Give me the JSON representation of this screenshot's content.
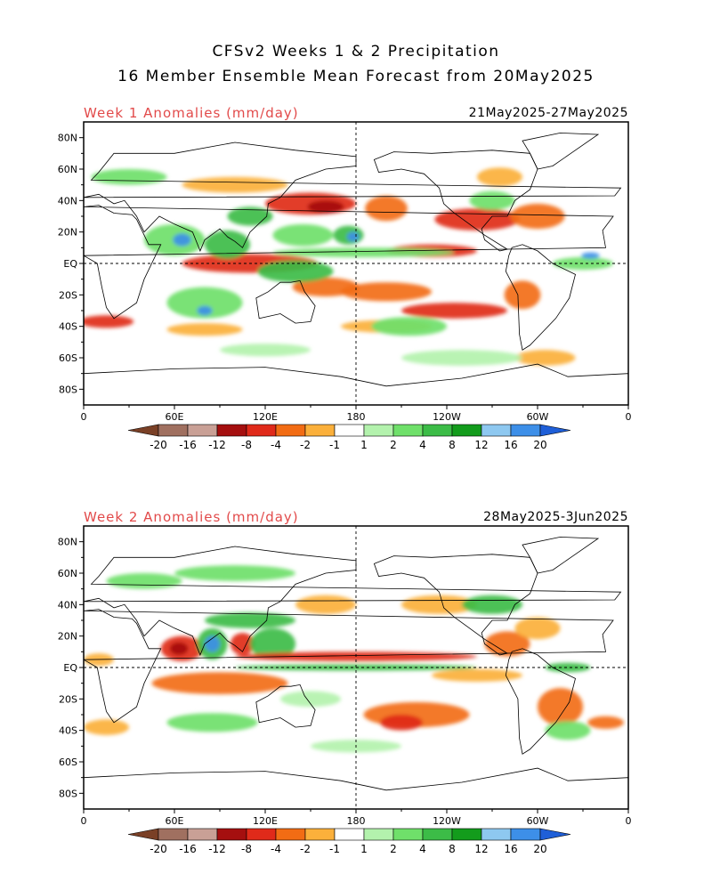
{
  "header": {
    "title_line1": "CFSv2 Weeks 1 & 2 Precipitation",
    "title_line2": "16 Member Ensemble Mean Forecast from 20May2025"
  },
  "axes": {
    "lat_ticks": [
      "80N",
      "60N",
      "40N",
      "20N",
      "EQ",
      "20S",
      "40S",
      "60S",
      "80S"
    ],
    "lon_ticks": [
      "0",
      "60E",
      "120E",
      "180",
      "120W",
      "60W",
      "0"
    ]
  },
  "colorbar": {
    "labels": [
      "-20",
      "-16",
      "-12",
      "-8",
      "-4",
      "-2",
      "-1",
      "1",
      "2",
      "4",
      "8",
      "12",
      "16",
      "20"
    ],
    "colors": [
      "#7a4026",
      "#a07060",
      "#c9a096",
      "#a50f0f",
      "#e02a1a",
      "#f26c14",
      "#fbb03b",
      "#ffffff",
      "#b3f2ad",
      "#6fe06a",
      "#3cbc47",
      "#139c1c",
      "#8ec8f0",
      "#3d8fe8",
      "#1f5fd8"
    ]
  },
  "colors": {
    "label_red": "#e24a4a",
    "land": "#ffffff",
    "coast": "#000000"
  },
  "panels": [
    {
      "label": "Week 1 Anomalies (mm/day)",
      "date_range": "21May2025-27May2025",
      "blobs": [
        {
          "lon": 150,
          "lat": 38,
          "rx": 30,
          "ry": 7,
          "c": "#e02a1a"
        },
        {
          "lon": 160,
          "lat": 36,
          "rx": 12,
          "ry": 4,
          "c": "#a50f0f"
        },
        {
          "lon": 200,
          "lat": 35,
          "rx": 14,
          "ry": 8,
          "c": "#f26c14"
        },
        {
          "lon": 260,
          "lat": 28,
          "rx": 28,
          "ry": 7,
          "c": "#e02a1a"
        },
        {
          "lon": 300,
          "lat": 30,
          "rx": 18,
          "ry": 8,
          "c": "#f26c14"
        },
        {
          "lon": 110,
          "lat": 0,
          "rx": 45,
          "ry": 6,
          "c": "#e02a1a"
        },
        {
          "lon": 230,
          "lat": 8,
          "rx": 30,
          "ry": 4,
          "c": "#e02a1a"
        },
        {
          "lon": 200,
          "lat": -18,
          "rx": 30,
          "ry": 6,
          "c": "#f26c14"
        },
        {
          "lon": 245,
          "lat": -30,
          "rx": 35,
          "ry": 5,
          "c": "#e02a1a"
        },
        {
          "lon": 290,
          "lat": -20,
          "rx": 12,
          "ry": 9,
          "c": "#f26c14"
        },
        {
          "lon": 15,
          "lat": -37,
          "rx": 18,
          "ry": 4,
          "c": "#e02a1a"
        },
        {
          "lon": 160,
          "lat": -15,
          "rx": 22,
          "ry": 6,
          "c": "#f26c14"
        },
        {
          "lon": 100,
          "lat": 50,
          "rx": 35,
          "ry": 5,
          "c": "#fbb03b"
        },
        {
          "lon": 275,
          "lat": 55,
          "rx": 15,
          "ry": 6,
          "c": "#fbb03b"
        },
        {
          "lon": 305,
          "lat": -60,
          "rx": 20,
          "ry": 5,
          "c": "#fbb03b"
        },
        {
          "lon": 200,
          "lat": -40,
          "rx": 30,
          "ry": 4,
          "c": "#fbb03b"
        },
        {
          "lon": 80,
          "lat": -42,
          "rx": 25,
          "ry": 4,
          "c": "#fbb03b"
        },
        {
          "lon": 60,
          "lat": 15,
          "rx": 20,
          "ry": 10,
          "c": "#6fe06a"
        },
        {
          "lon": 65,
          "lat": 15,
          "rx": 6,
          "ry": 4,
          "c": "#3d8fe8"
        },
        {
          "lon": 95,
          "lat": 12,
          "rx": 15,
          "ry": 9,
          "c": "#3cbc47"
        },
        {
          "lon": 145,
          "lat": 18,
          "rx": 20,
          "ry": 7,
          "c": "#6fe06a"
        },
        {
          "lon": 175,
          "lat": 18,
          "rx": 10,
          "ry": 6,
          "c": "#3cbc47"
        },
        {
          "lon": 178,
          "lat": 17,
          "rx": 4,
          "ry": 3,
          "c": "#3d8fe8"
        },
        {
          "lon": 185,
          "lat": 7,
          "rx": 60,
          "ry": 3,
          "c": "#6fe06a"
        },
        {
          "lon": 80,
          "lat": -25,
          "rx": 25,
          "ry": 10,
          "c": "#6fe06a"
        },
        {
          "lon": 80,
          "lat": -30,
          "rx": 5,
          "ry": 3,
          "c": "#3d8fe8"
        },
        {
          "lon": 140,
          "lat": -5,
          "rx": 25,
          "ry": 7,
          "c": "#3cbc47"
        },
        {
          "lon": 330,
          "lat": 0,
          "rx": 20,
          "ry": 4,
          "c": "#6fe06a"
        },
        {
          "lon": 335,
          "lat": 5,
          "rx": 6,
          "ry": 2,
          "c": "#3d8fe8"
        },
        {
          "lon": 215,
          "lat": -40,
          "rx": 25,
          "ry": 6,
          "c": "#6fe06a"
        },
        {
          "lon": 30,
          "lat": 55,
          "rx": 25,
          "ry": 5,
          "c": "#6fe06a"
        },
        {
          "lon": 270,
          "lat": 40,
          "rx": 15,
          "ry": 6,
          "c": "#6fe06a"
        },
        {
          "lon": 120,
          "lat": -55,
          "rx": 30,
          "ry": 4,
          "c": "#b3f2ad"
        },
        {
          "lon": 250,
          "lat": -60,
          "rx": 40,
          "ry": 5,
          "c": "#b3f2ad"
        },
        {
          "lon": 110,
          "lat": 30,
          "rx": 15,
          "ry": 6,
          "c": "#3cbc47"
        }
      ]
    },
    {
      "label": "Week 2 Anomalies (mm/day)",
      "date_range": "28May2025-3Jun2025",
      "blobs": [
        {
          "lon": 65,
          "lat": 12,
          "rx": 14,
          "ry": 8,
          "c": "#e02a1a"
        },
        {
          "lon": 63,
          "lat": 12,
          "rx": 6,
          "ry": 4,
          "c": "#a50f0f"
        },
        {
          "lon": 85,
          "lat": 15,
          "rx": 10,
          "ry": 10,
          "c": "#3cbc47"
        },
        {
          "lon": 85,
          "lat": 15,
          "rx": 5,
          "ry": 5,
          "c": "#3d8fe8"
        },
        {
          "lon": 105,
          "lat": 15,
          "rx": 8,
          "ry": 7,
          "c": "#e02a1a"
        },
        {
          "lon": 125,
          "lat": 15,
          "rx": 15,
          "ry": 10,
          "c": "#3cbc47"
        },
        {
          "lon": 110,
          "lat": 30,
          "rx": 30,
          "ry": 5,
          "c": "#3cbc47"
        },
        {
          "lon": 180,
          "lat": 7,
          "rx": 80,
          "ry": 3,
          "c": "#e02a1a"
        },
        {
          "lon": 180,
          "lat": 0,
          "rx": 80,
          "ry": 2,
          "c": "#3cbc47"
        },
        {
          "lon": 280,
          "lat": 15,
          "rx": 15,
          "ry": 8,
          "c": "#f26c14"
        },
        {
          "lon": 300,
          "lat": 25,
          "rx": 15,
          "ry": 7,
          "c": "#fbb03b"
        },
        {
          "lon": 320,
          "lat": 0,
          "rx": 15,
          "ry": 3,
          "c": "#3cbc47"
        },
        {
          "lon": 90,
          "lat": -10,
          "rx": 45,
          "ry": 7,
          "c": "#f26c14"
        },
        {
          "lon": 220,
          "lat": -30,
          "rx": 35,
          "ry": 8,
          "c": "#f26c14"
        },
        {
          "lon": 210,
          "lat": -35,
          "rx": 14,
          "ry": 5,
          "c": "#e02a1a"
        },
        {
          "lon": 315,
          "lat": -25,
          "rx": 15,
          "ry": 12,
          "c": "#f26c14"
        },
        {
          "lon": 15,
          "lat": -38,
          "rx": 15,
          "ry": 5,
          "c": "#fbb03b"
        },
        {
          "lon": 345,
          "lat": -35,
          "rx": 12,
          "ry": 4,
          "c": "#f26c14"
        },
        {
          "lon": 160,
          "lat": 40,
          "rx": 20,
          "ry": 6,
          "c": "#fbb03b"
        },
        {
          "lon": 235,
          "lat": 40,
          "rx": 25,
          "ry": 6,
          "c": "#fbb03b"
        },
        {
          "lon": 270,
          "lat": 40,
          "rx": 20,
          "ry": 6,
          "c": "#3cbc47"
        },
        {
          "lon": 100,
          "lat": 60,
          "rx": 40,
          "ry": 5,
          "c": "#6fe06a"
        },
        {
          "lon": 40,
          "lat": 55,
          "rx": 25,
          "ry": 5,
          "c": "#6fe06a"
        },
        {
          "lon": 85,
          "lat": -35,
          "rx": 30,
          "ry": 6,
          "c": "#6fe06a"
        },
        {
          "lon": 150,
          "lat": -20,
          "rx": 20,
          "ry": 5,
          "c": "#b3f2ad"
        },
        {
          "lon": 180,
          "lat": -50,
          "rx": 30,
          "ry": 4,
          "c": "#b3f2ad"
        },
        {
          "lon": 320,
          "lat": -40,
          "rx": 15,
          "ry": 6,
          "c": "#6fe06a"
        },
        {
          "lon": 260,
          "lat": -5,
          "rx": 30,
          "ry": 4,
          "c": "#fbb03b"
        },
        {
          "lon": 10,
          "lat": 5,
          "rx": 10,
          "ry": 4,
          "c": "#fbb03b"
        }
      ]
    }
  ]
}
